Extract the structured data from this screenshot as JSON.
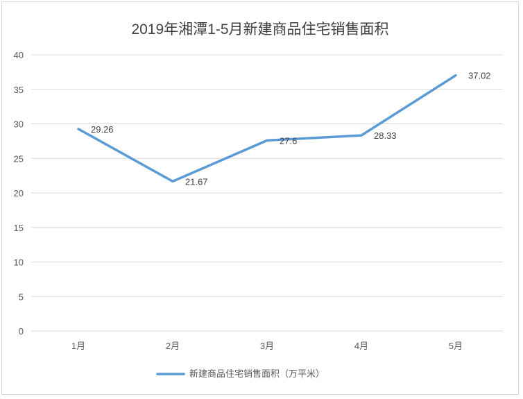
{
  "chart_data": {
    "type": "line",
    "title": "2019年湘潭1-5月新建商品住宅销售面积",
    "categories": [
      "1月",
      "2月",
      "3月",
      "4月",
      "5月"
    ],
    "series": [
      {
        "name": "新建商品住宅销售面积（万平米）",
        "values": [
          29.26,
          21.67,
          27.6,
          28.33,
          37.02
        ],
        "data_labels": [
          "29.26",
          "21.67",
          "27.6",
          "28.33",
          "37.02"
        ],
        "color": "#5b9bd5"
      }
    ],
    "ylim": [
      0,
      40
    ],
    "yticks": [
      "0",
      "5",
      "10",
      "15",
      "20",
      "25",
      "30",
      "35",
      "40"
    ],
    "grid": true,
    "legend": "bottom",
    "xlabel": "",
    "ylabel": ""
  }
}
